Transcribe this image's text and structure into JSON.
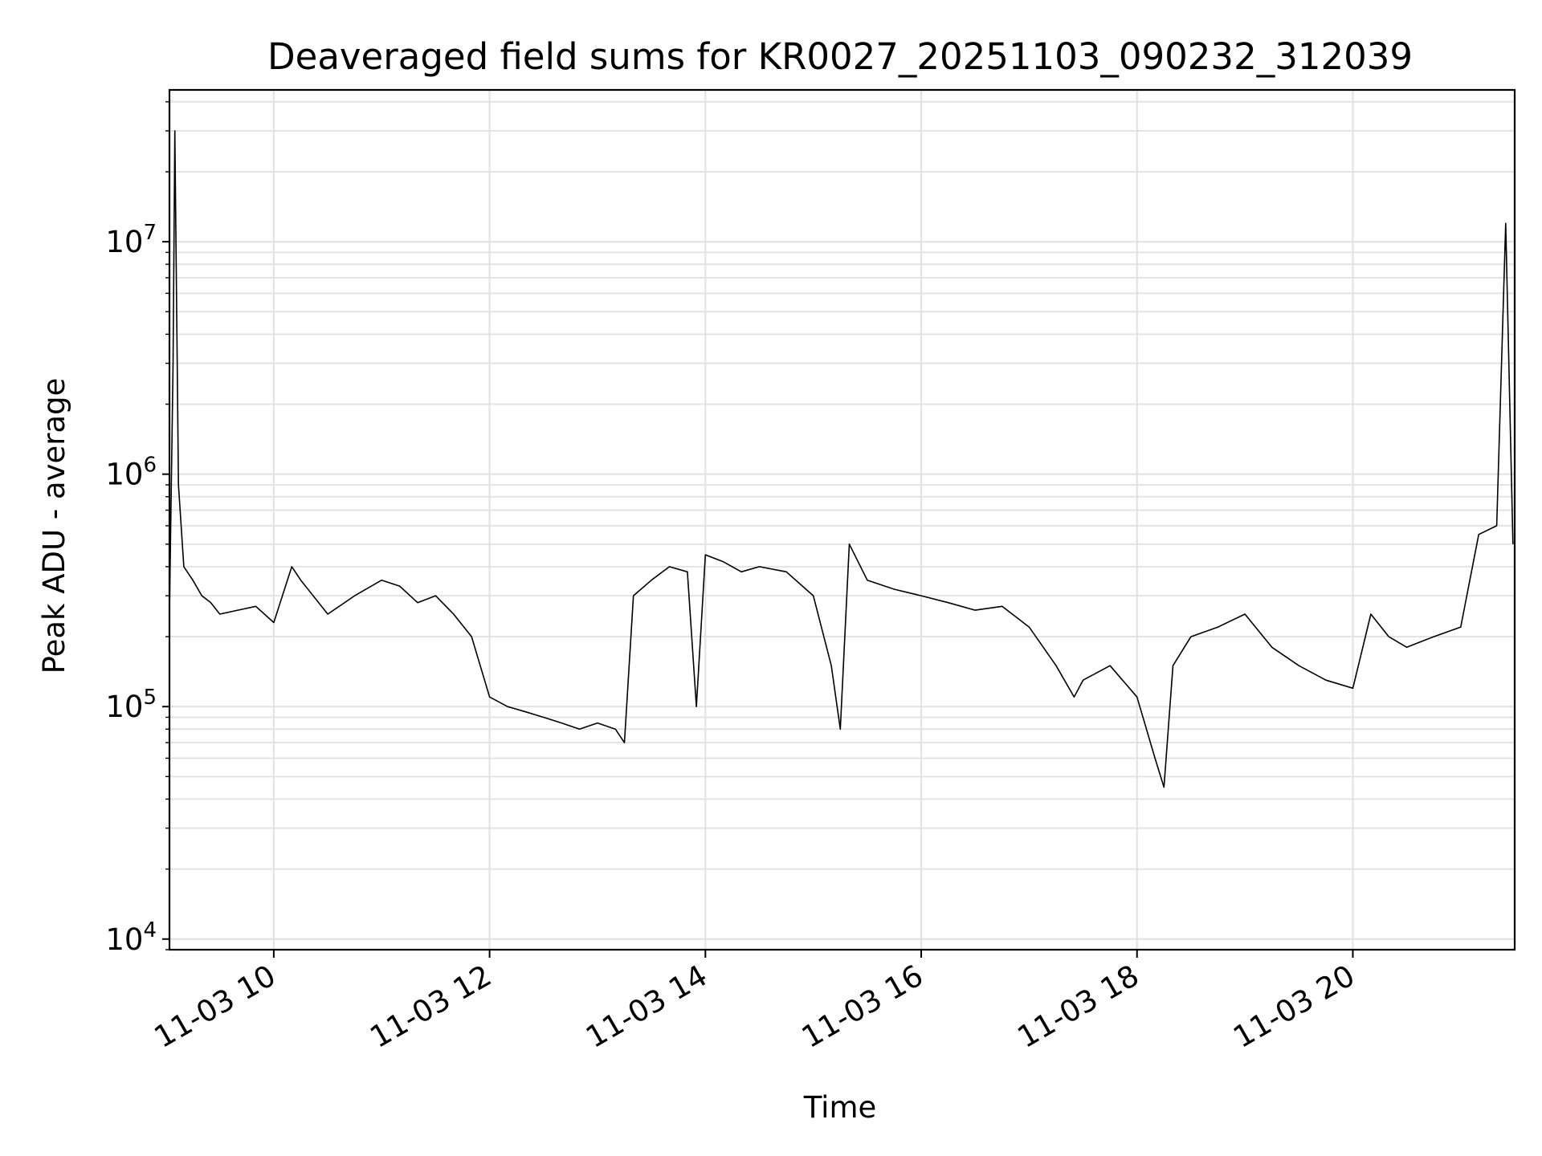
{
  "chart_data": {
    "type": "line",
    "title": "Deaveraged field sums for KR0027_20251103_090232_312039",
    "xlabel": "Time",
    "ylabel": "Peak ADU - average",
    "yscale": "log",
    "ylim": [
      9000,
      45000000
    ],
    "xlim": [
      "11-03 09:02",
      "11-03 21:30"
    ],
    "grid": true,
    "line_color": "#000000",
    "x_ticks": [
      {
        "t": "11-03 10:00",
        "label": "11-03 10"
      },
      {
        "t": "11-03 12:00",
        "label": "11-03 12"
      },
      {
        "t": "11-03 14:00",
        "label": "11-03 14"
      },
      {
        "t": "11-03 16:00",
        "label": "11-03 16"
      },
      {
        "t": "11-03 18:00",
        "label": "11-03 18"
      },
      {
        "t": "11-03 20:00",
        "label": "11-03 20"
      }
    ],
    "y_ticks": [
      {
        "value": 10000,
        "base": "10",
        "exp": "4"
      },
      {
        "value": 100000,
        "base": "10",
        "exp": "5"
      },
      {
        "value": 1000000,
        "base": "10",
        "exp": "6"
      },
      {
        "value": 10000000,
        "base": "10",
        "exp": "7"
      }
    ],
    "series": [
      {
        "x": [
          "11-03 09:02",
          "11-03 09:04",
          "11-03 09:05",
          "11-03 09:07",
          "11-03 09:10",
          "11-03 09:15",
          "11-03 09:20",
          "11-03 09:25",
          "11-03 09:30",
          "11-03 09:40",
          "11-03 09:50",
          "11-03 10:00",
          "11-03 10:10",
          "11-03 10:15",
          "11-03 10:30",
          "11-03 10:45",
          "11-03 11:00",
          "11-03 11:10",
          "11-03 11:20",
          "11-03 11:30",
          "11-03 11:40",
          "11-03 11:50",
          "11-03 12:00",
          "11-03 12:10",
          "11-03 12:20",
          "11-03 12:30",
          "11-03 12:40",
          "11-03 12:50",
          "11-03 13:00",
          "11-03 13:10",
          "11-03 13:15",
          "11-03 13:20",
          "11-03 13:30",
          "11-03 13:40",
          "11-03 13:50",
          "11-03 13:55",
          "11-03 14:00",
          "11-03 14:10",
          "11-03 14:20",
          "11-03 14:30",
          "11-03 14:45",
          "11-03 15:00",
          "11-03 15:10",
          "11-03 15:15",
          "11-03 15:20",
          "11-03 15:30",
          "11-03 15:45",
          "11-03 16:00",
          "11-03 16:15",
          "11-03 16:30",
          "11-03 16:45",
          "11-03 17:00",
          "11-03 17:15",
          "11-03 17:25",
          "11-03 17:30",
          "11-03 17:45",
          "11-03 18:00",
          "11-03 18:10",
          "11-03 18:15",
          "11-03 18:20",
          "11-03 18:30",
          "11-03 18:45",
          "11-03 19:00",
          "11-03 19:15",
          "11-03 19:30",
          "11-03 19:45",
          "11-03 20:00",
          "11-03 20:10",
          "11-03 20:20",
          "11-03 20:30",
          "11-03 20:45",
          "11-03 21:00",
          "11-03 21:10",
          "11-03 21:20",
          "11-03 21:25",
          "11-03 21:29"
        ],
        "y": [
          250000,
          3000000,
          30000000,
          900000,
          400000,
          350000,
          300000,
          280000,
          250000,
          260000,
          270000,
          230000,
          400000,
          350000,
          250000,
          300000,
          350000,
          330000,
          280000,
          300000,
          250000,
          200000,
          110000,
          100000,
          95000,
          90000,
          85000,
          80000,
          85000,
          80000,
          70000,
          300000,
          350000,
          400000,
          380000,
          100000,
          450000,
          420000,
          380000,
          400000,
          380000,
          300000,
          150000,
          80000,
          500000,
          350000,
          320000,
          300000,
          280000,
          260000,
          270000,
          220000,
          150000,
          110000,
          130000,
          150000,
          110000,
          60000,
          45000,
          150000,
          200000,
          220000,
          250000,
          180000,
          150000,
          130000,
          120000,
          250000,
          200000,
          180000,
          200000,
          220000,
          550000,
          600000,
          12000000,
          500000
        ]
      }
    ]
  }
}
